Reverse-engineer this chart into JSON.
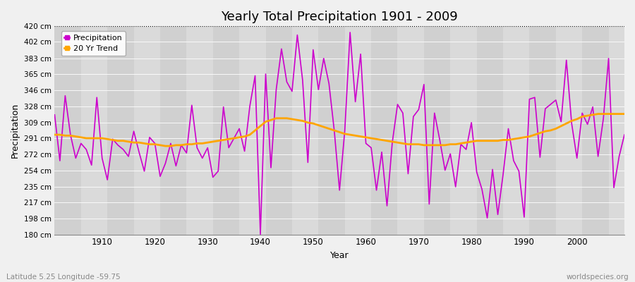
{
  "title": "Yearly Total Precipitation 1901 - 2009",
  "xlabel": "Year",
  "ylabel": "Precipitation",
  "subtitle_left": "Latitude 5.25 Longitude -59.75",
  "subtitle_right": "worldspecies.org",
  "ylim": [
    180,
    420
  ],
  "ytick_labels": [
    "180 cm",
    "198 cm",
    "217 cm",
    "235 cm",
    "254 cm",
    "272 cm",
    "291 cm",
    "309 cm",
    "328 cm",
    "346 cm",
    "365 cm",
    "383 cm",
    "402 cm",
    "420 cm"
  ],
  "ytick_values": [
    180,
    198,
    217,
    235,
    254,
    272,
    291,
    309,
    328,
    346,
    365,
    383,
    402,
    420
  ],
  "xtick_values": [
    1910,
    1920,
    1930,
    1940,
    1950,
    1960,
    1970,
    1980,
    1990,
    2000
  ],
  "precip_color": "#CC00CC",
  "trend_color": "#FFA500",
  "fig_bg_color": "#FFFFFF",
  "plot_bg_color": "#E0E0E0",
  "stripe_color1": "#DCDCDC",
  "stripe_color2": "#E8E8E8",
  "years": [
    1901,
    1902,
    1903,
    1904,
    1905,
    1906,
    1907,
    1908,
    1909,
    1910,
    1911,
    1912,
    1913,
    1914,
    1915,
    1916,
    1917,
    1918,
    1919,
    1920,
    1921,
    1922,
    1923,
    1924,
    1925,
    1926,
    1927,
    1928,
    1929,
    1930,
    1931,
    1932,
    1933,
    1934,
    1935,
    1936,
    1937,
    1938,
    1939,
    1940,
    1941,
    1942,
    1943,
    1944,
    1945,
    1946,
    1947,
    1948,
    1949,
    1950,
    1951,
    1952,
    1953,
    1954,
    1955,
    1956,
    1957,
    1958,
    1959,
    1960,
    1961,
    1962,
    1963,
    1964,
    1965,
    1966,
    1967,
    1968,
    1969,
    1970,
    1971,
    1972,
    1973,
    1974,
    1975,
    1976,
    1977,
    1978,
    1979,
    1980,
    1981,
    1982,
    1983,
    1984,
    1985,
    1986,
    1987,
    1988,
    1989,
    1990,
    1991,
    1992,
    1993,
    1994,
    1995,
    1996,
    1997,
    1998,
    1999,
    2000,
    2001,
    2002,
    2003,
    2004,
    2005,
    2006,
    2007,
    2008,
    2009
  ],
  "precipitation": [
    318,
    265,
    340,
    295,
    268,
    285,
    278,
    260,
    338,
    268,
    243,
    290,
    283,
    278,
    270,
    299,
    275,
    253,
    292,
    285,
    247,
    262,
    285,
    259,
    283,
    274,
    329,
    280,
    268,
    280,
    246,
    253,
    327,
    280,
    291,
    302,
    276,
    328,
    363,
    180,
    365,
    257,
    347,
    394,
    356,
    345,
    410,
    358,
    263,
    393,
    347,
    383,
    354,
    300,
    231,
    300,
    413,
    333,
    388,
    285,
    280,
    231,
    275,
    213,
    286,
    330,
    320,
    250,
    316,
    324,
    353,
    215,
    320,
    289,
    254,
    273,
    235,
    284,
    278,
    309,
    252,
    232,
    199,
    255,
    203,
    249,
    302,
    265,
    253,
    200,
    336,
    338,
    269,
    325,
    330,
    335,
    310,
    381,
    308,
    268,
    320,
    307,
    327,
    270,
    313,
    383,
    234,
    270,
    295
  ],
  "trend": [
    295,
    295,
    294,
    294,
    293,
    292,
    291,
    291,
    291,
    291,
    290,
    289,
    288,
    288,
    287,
    286,
    286,
    285,
    284,
    284,
    283,
    282,
    282,
    283,
    283,
    284,
    284,
    285,
    285,
    286,
    287,
    288,
    289,
    290,
    291,
    292,
    293,
    295,
    300,
    305,
    310,
    312,
    314,
    314,
    314,
    313,
    312,
    311,
    309,
    308,
    306,
    304,
    302,
    300,
    298,
    296,
    295,
    294,
    293,
    292,
    291,
    290,
    289,
    288,
    287,
    286,
    285,
    284,
    284,
    284,
    283,
    283,
    283,
    283,
    283,
    284,
    284,
    285,
    286,
    287,
    288,
    288,
    288,
    288,
    288,
    289,
    289,
    290,
    291,
    292,
    293,
    295,
    297,
    299,
    300,
    302,
    305,
    308,
    311,
    313,
    316,
    317,
    318,
    319,
    319,
    319,
    319,
    319,
    319
  ]
}
